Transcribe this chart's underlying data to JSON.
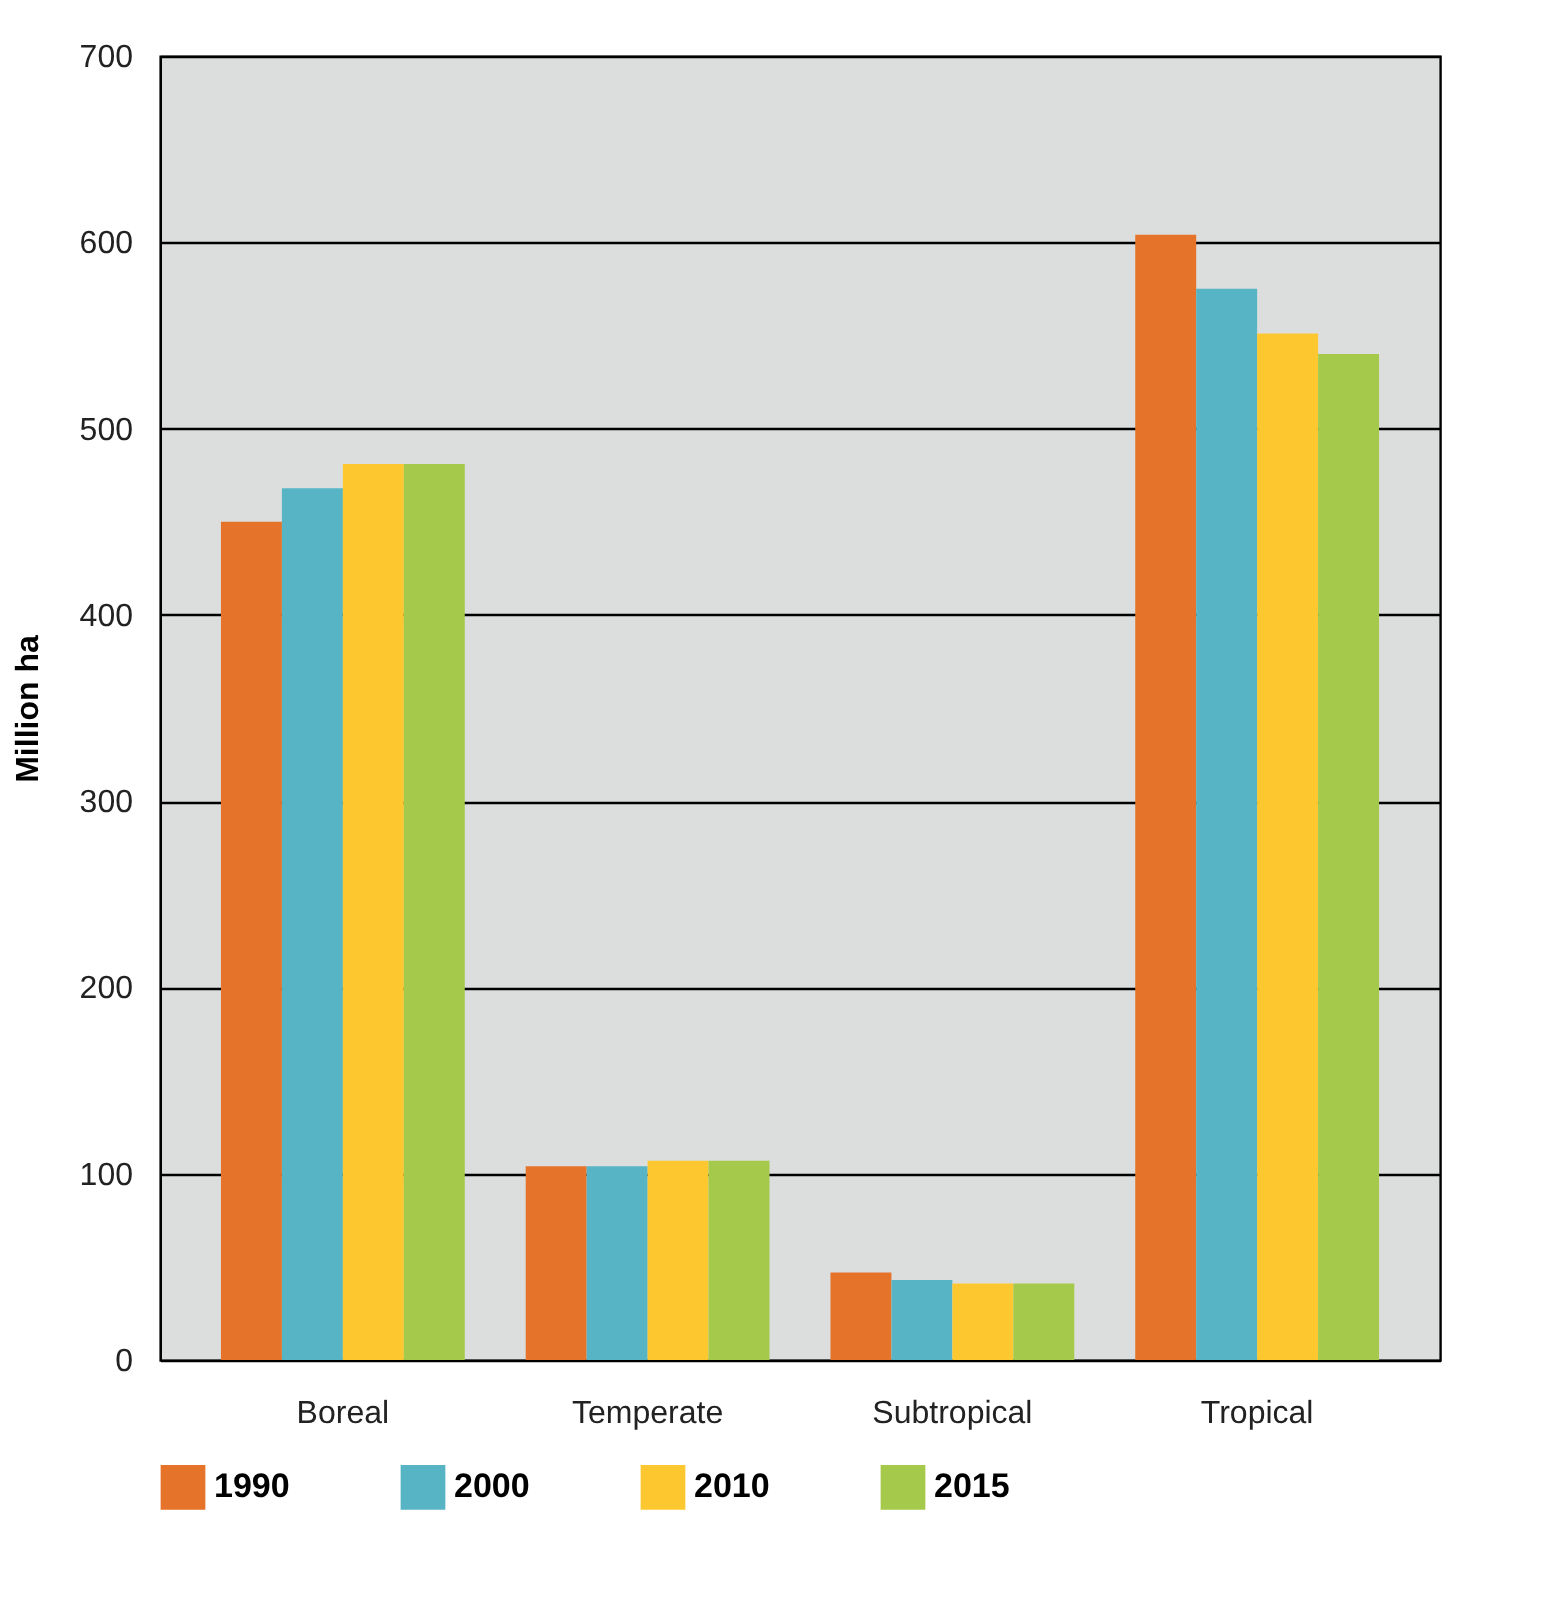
{
  "chart_data": {
    "type": "bar",
    "ylabel": "Million ha",
    "categories": [
      "Boreal",
      "Temperate",
      "Subtropical",
      "Tropical"
    ],
    "series": [
      {
        "name": "1990",
        "color": "#e5732a",
        "values": [
          450,
          104,
          47,
          604
        ]
      },
      {
        "name": "2000",
        "color": "#56b4c4",
        "values": [
          468,
          104,
          43,
          575
        ]
      },
      {
        "name": "2010",
        "color": "#fdc82f",
        "values": [
          481,
          107,
          41,
          551
        ]
      },
      {
        "name": "2015",
        "color": "#a5c94a",
        "values": [
          481,
          107,
          41,
          540
        ]
      }
    ],
    "ylim": [
      0,
      700
    ],
    "yticks": [
      0,
      100,
      200,
      300,
      400,
      500,
      600,
      700
    ],
    "grid": "y",
    "legend": "bottom"
  }
}
